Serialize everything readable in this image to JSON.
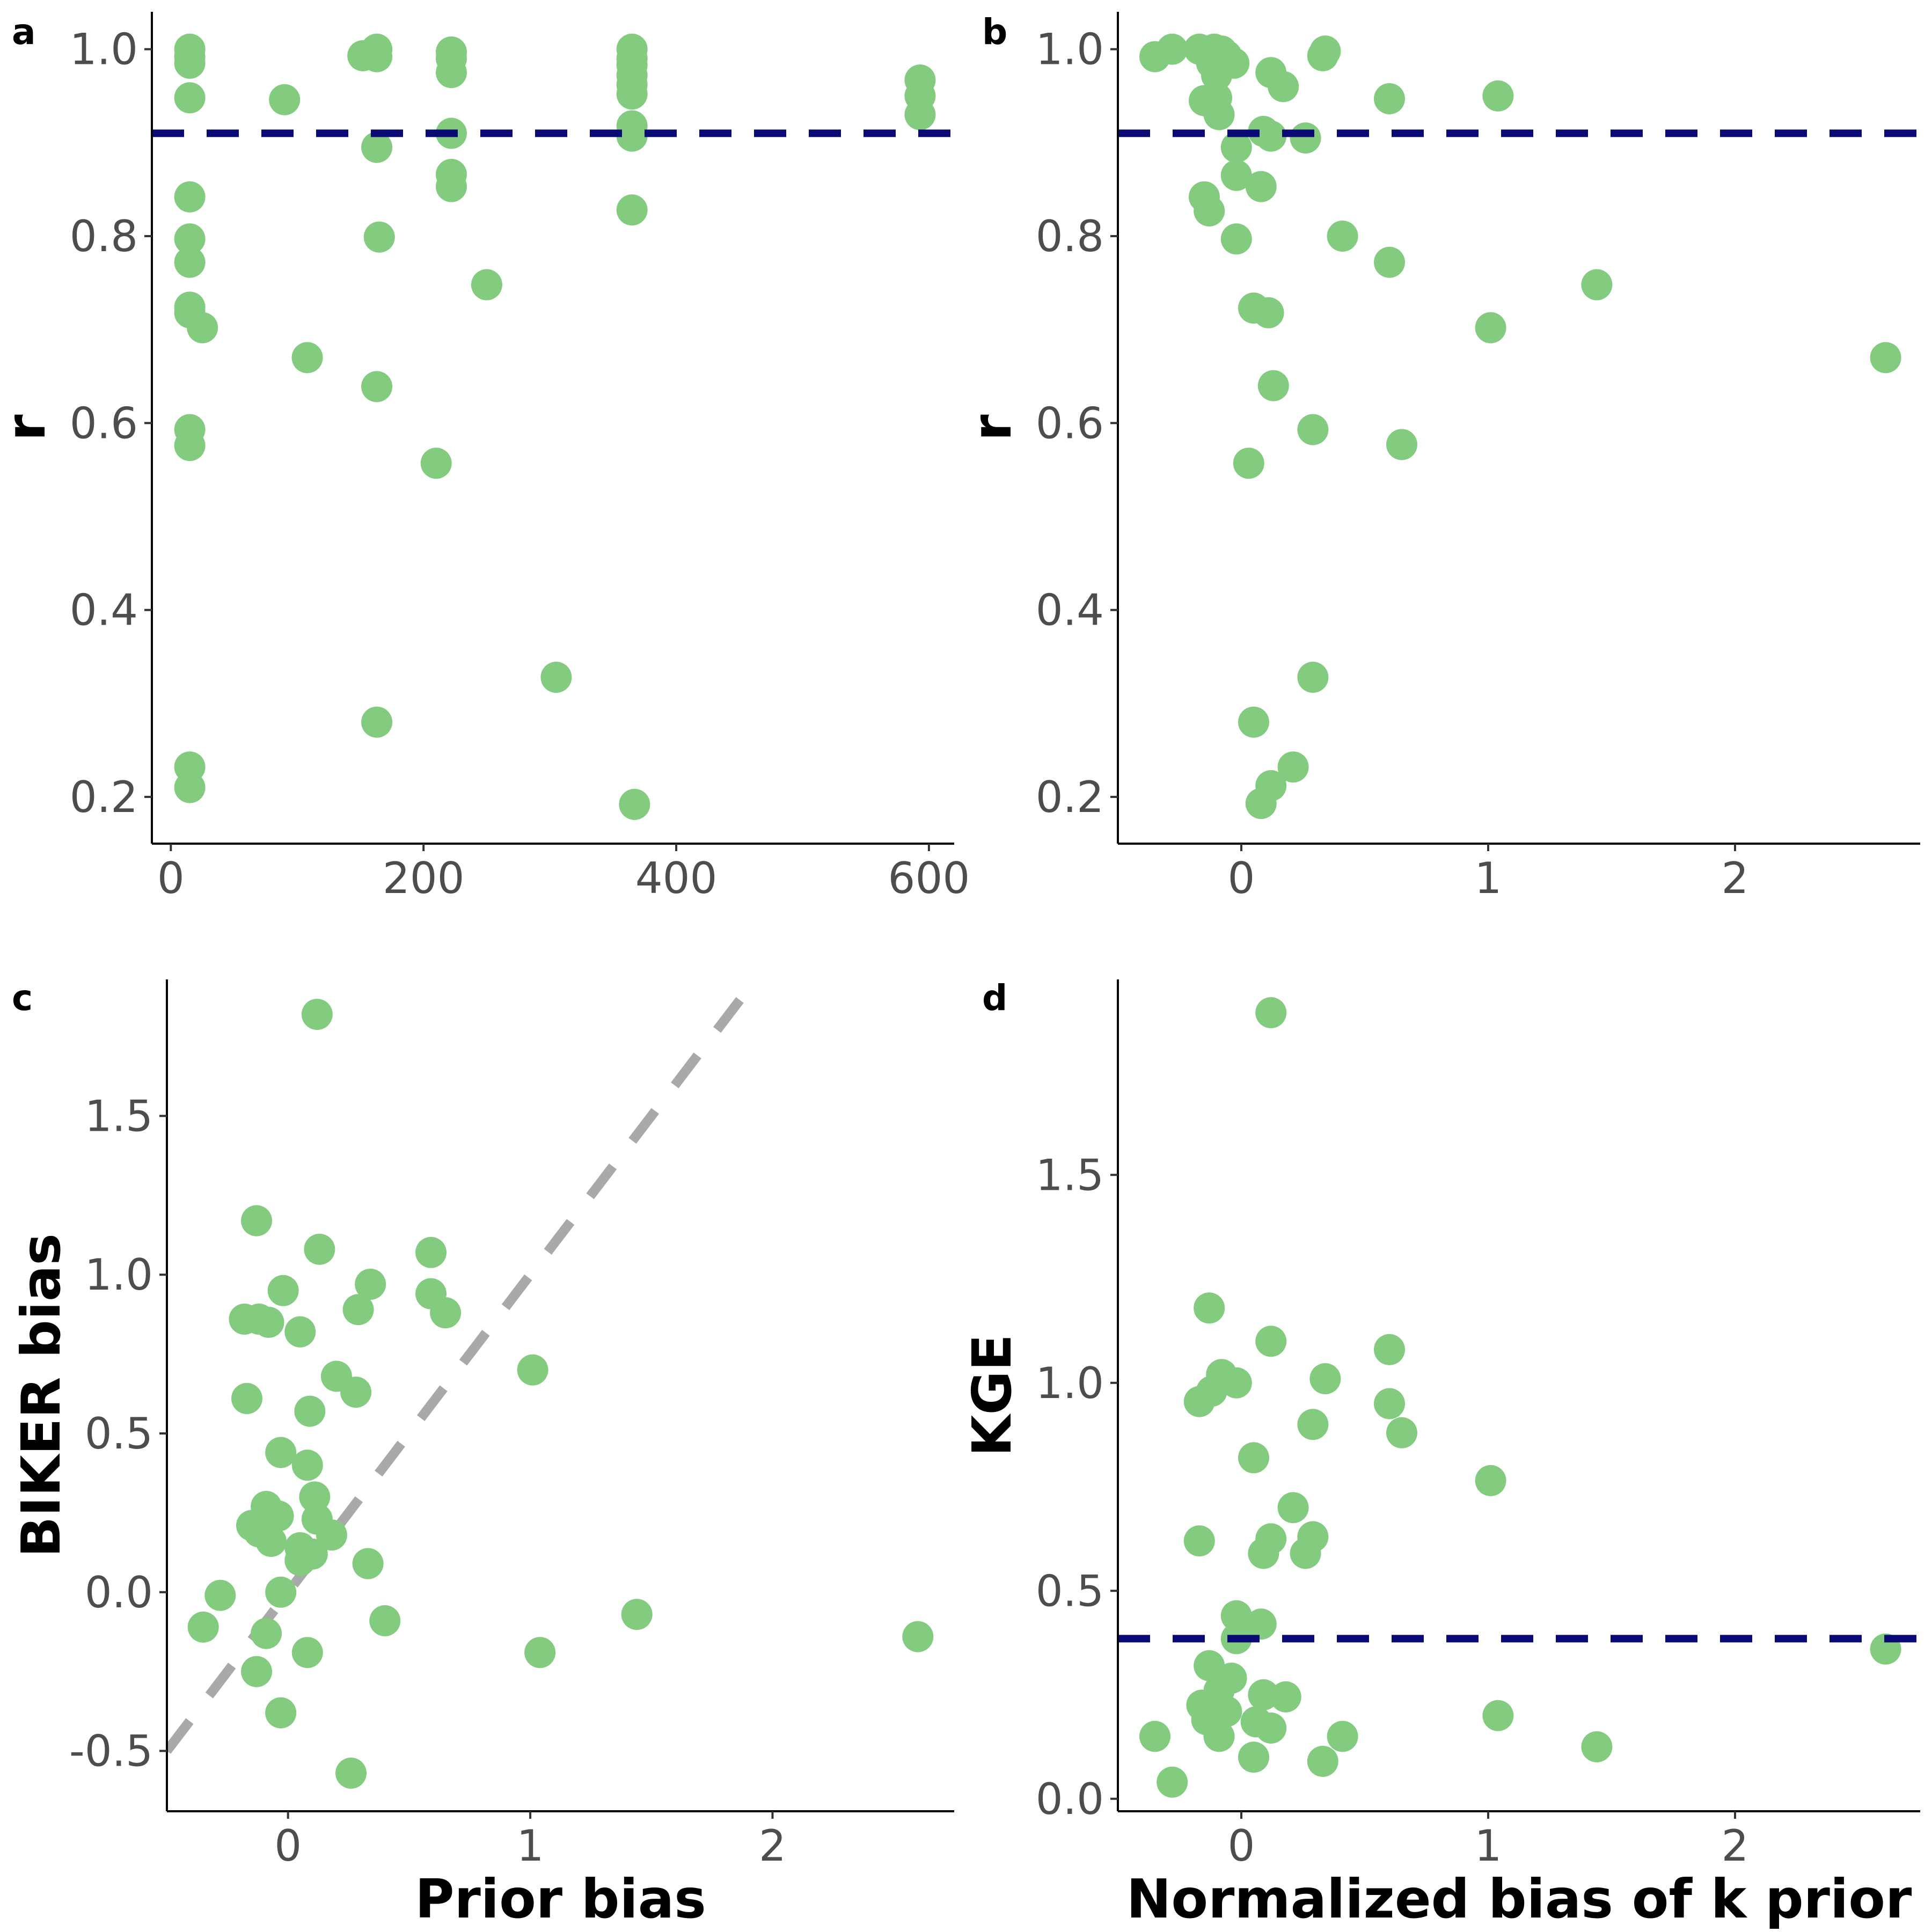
{
  "colors": {
    "point": "#82CB7F",
    "hline": "#0A0A74",
    "diagonal": "#A9A9A9"
  },
  "chart_data": [
    {
      "tag": "a",
      "type": "scatter",
      "xlabel": "",
      "ylabel": "r",
      "xlim": [
        -15,
        620
      ],
      "ylim": [
        0.15,
        1.04
      ],
      "xticks": [
        0,
        200,
        400,
        600
      ],
      "xtick_labels": [
        "0",
        "200",
        "400",
        "600"
      ],
      "yticks": [
        0.2,
        0.4,
        0.6,
        0.8,
        1.0
      ],
      "ytick_labels": [
        "0.2",
        "0.4",
        "0.6",
        "0.8",
        "1.0"
      ],
      "hline": 0.91,
      "points": [
        [
          15,
          1.0
        ],
        [
          15,
          0.992
        ],
        [
          15,
          0.985
        ],
        [
          15,
          0.948
        ],
        [
          15,
          0.842
        ],
        [
          15,
          0.797
        ],
        [
          15,
          0.772
        ],
        [
          15,
          0.724
        ],
        [
          15,
          0.718
        ],
        [
          25,
          0.702
        ],
        [
          15,
          0.593
        ],
        [
          15,
          0.576
        ],
        [
          15,
          0.232
        ],
        [
          15,
          0.21
        ],
        [
          90,
          0.946
        ],
        [
          108,
          0.67
        ],
        [
          152,
          0.993
        ],
        [
          163,
          1.0
        ],
        [
          163,
          0.992
        ],
        [
          163,
          0.895
        ],
        [
          165,
          0.799
        ],
        [
          163,
          0.639
        ],
        [
          163,
          0.28
        ],
        [
          210,
          0.557
        ],
        [
          222,
          0.997
        ],
        [
          222,
          0.99
        ],
        [
          222,
          0.975
        ],
        [
          222,
          0.91
        ],
        [
          222,
          0.866
        ],
        [
          222,
          0.853
        ],
        [
          250,
          0.748
        ],
        [
          305,
          0.328
        ],
        [
          365,
          1.0
        ],
        [
          365,
          0.99
        ],
        [
          365,
          0.983
        ],
        [
          365,
          0.972
        ],
        [
          365,
          0.962
        ],
        [
          365,
          0.952
        ],
        [
          365,
          0.918
        ],
        [
          365,
          0.907
        ],
        [
          365,
          0.828
        ],
        [
          367,
          0.192
        ],
        [
          593,
          0.967
        ],
        [
          593,
          0.95
        ],
        [
          593,
          0.93
        ]
      ]
    },
    {
      "tag": "b",
      "type": "scatter",
      "xlabel": "",
      "ylabel": "r",
      "xlim": [
        -0.5,
        2.75
      ],
      "ylim": [
        0.15,
        1.04
      ],
      "xticks": [
        0,
        1,
        2
      ],
      "xtick_labels": [
        "0",
        "1",
        "2"
      ],
      "yticks": [
        0.2,
        0.4,
        0.6,
        0.8,
        1.0
      ],
      "ytick_labels": [
        "0.2",
        "0.4",
        "0.6",
        "0.8",
        "1.0"
      ],
      "hline": 0.91,
      "points": [
        [
          -0.35,
          0.992
        ],
        [
          -0.28,
          1.0
        ],
        [
          -0.17,
          1.0
        ],
        [
          -0.11,
          1.0
        ],
        [
          -0.08,
          0.998
        ],
        [
          -0.12,
          0.985
        ],
        [
          -0.06,
          0.993
        ],
        [
          -0.03,
          0.985
        ],
        [
          -0.1,
          0.972
        ],
        [
          -0.15,
          0.945
        ],
        [
          -0.12,
          0.942
        ],
        [
          -0.1,
          0.948
        ],
        [
          -0.09,
          0.93
        ],
        [
          0.12,
          0.975
        ],
        [
          0.17,
          0.96
        ],
        [
          0.34,
          0.998
        ],
        [
          0.33,
          0.993
        ],
        [
          0.6,
          0.947
        ],
        [
          1.04,
          0.95
        ],
        [
          0.09,
          0.912
        ],
        [
          0.12,
          0.907
        ],
        [
          0.26,
          0.905
        ],
        [
          -0.02,
          0.895
        ],
        [
          -0.02,
          0.865
        ],
        [
          0.08,
          0.853
        ],
        [
          -0.15,
          0.842
        ],
        [
          -0.13,
          0.827
        ],
        [
          -0.02,
          0.797
        ],
        [
          0.41,
          0.8
        ],
        [
          0.6,
          0.772
        ],
        [
          0.05,
          0.723
        ],
        [
          0.11,
          0.718
        ],
        [
          1.01,
          0.702
        ],
        [
          1.44,
          0.748
        ],
        [
          2.61,
          0.67
        ],
        [
          0.13,
          0.64
        ],
        [
          0.29,
          0.593
        ],
        [
          0.65,
          0.577
        ],
        [
          0.03,
          0.557
        ],
        [
          0.29,
          0.328
        ],
        [
          0.05,
          0.28
        ],
        [
          0.21,
          0.232
        ],
        [
          0.12,
          0.212
        ],
        [
          0.08,
          0.193
        ]
      ]
    },
    {
      "tag": "c",
      "type": "scatter",
      "xlabel": "Prior bias",
      "ylabel": "BIKER bias",
      "xlim": [
        -0.5,
        2.75
      ],
      "ylim": [
        -0.69,
        1.93
      ],
      "xticks": [
        0,
        1,
        2
      ],
      "xtick_labels": [
        "0",
        "1",
        "2"
      ],
      "yticks": [
        -0.5,
        0.0,
        0.5,
        1.0,
        1.5
      ],
      "ytick_labels": [
        "-0.5",
        "0.0",
        "0.5",
        "1.0",
        "1.5"
      ],
      "diagonal": true,
      "points": [
        [
          0.12,
          1.82
        ],
        [
          -0.13,
          1.17
        ],
        [
          0.13,
          1.08
        ],
        [
          0.59,
          1.07
        ],
        [
          0.34,
          0.97
        ],
        [
          -0.02,
          0.95
        ],
        [
          0.59,
          0.94
        ],
        [
          0.65,
          0.88
        ],
        [
          0.29,
          0.89
        ],
        [
          -0.18,
          0.86
        ],
        [
          -0.12,
          0.86
        ],
        [
          -0.08,
          0.85
        ],
        [
          0.05,
          0.82
        ],
        [
          1.01,
          0.7
        ],
        [
          0.2,
          0.68
        ],
        [
          0.28,
          0.63
        ],
        [
          -0.17,
          0.61
        ],
        [
          0.09,
          0.57
        ],
        [
          -0.03,
          0.44
        ],
        [
          0.08,
          0.4
        ],
        [
          0.11,
          0.3
        ],
        [
          -0.09,
          0.27
        ],
        [
          -0.04,
          0.24
        ],
        [
          0.12,
          0.23
        ],
        [
          -0.15,
          0.21
        ],
        [
          -0.12,
          0.19
        ],
        [
          0.18,
          0.18
        ],
        [
          -0.07,
          0.16
        ],
        [
          0.05,
          0.14
        ],
        [
          0.1,
          0.12
        ],
        [
          0.33,
          0.09
        ],
        [
          0.05,
          0.1
        ],
        [
          -0.03,
          0.0
        ],
        [
          -0.28,
          -0.01
        ],
        [
          -0.35,
          -0.11
        ],
        [
          0.4,
          -0.09
        ],
        [
          1.44,
          -0.07
        ],
        [
          -0.09,
          -0.13
        ],
        [
          2.6,
          -0.14
        ],
        [
          0.08,
          -0.19
        ],
        [
          1.04,
          -0.19
        ],
        [
          -0.13,
          -0.25
        ],
        [
          -0.03,
          -0.38
        ],
        [
          0.26,
          -0.57
        ]
      ]
    },
    {
      "tag": "d",
      "type": "scatter",
      "xlabel": "Normalized bias of k prior",
      "ylabel": "KGE",
      "xlim": [
        -0.5,
        2.75
      ],
      "ylim": [
        -0.03,
        1.97
      ],
      "xticks": [
        0,
        1,
        2
      ],
      "xtick_labels": [
        "0",
        "1",
        "2"
      ],
      "yticks": [
        0.0,
        0.5,
        1.0,
        1.5
      ],
      "ytick_labels": [
        "0.0",
        "0.5",
        "1.0",
        "1.5"
      ],
      "hline": 0.385,
      "points": [
        [
          0.12,
          1.89
        ],
        [
          -0.13,
          1.18
        ],
        [
          0.12,
          1.1
        ],
        [
          0.6,
          1.08
        ],
        [
          -0.08,
          1.02
        ],
        [
          0.34,
          1.01
        ],
        [
          -0.02,
          1.0
        ],
        [
          -0.12,
          0.98
        ],
        [
          -0.17,
          0.955
        ],
        [
          0.6,
          0.95
        ],
        [
          0.29,
          0.9
        ],
        [
          0.65,
          0.88
        ],
        [
          0.05,
          0.82
        ],
        [
          1.01,
          0.765
        ],
        [
          0.21,
          0.7
        ],
        [
          0.29,
          0.63
        ],
        [
          0.12,
          0.625
        ],
        [
          -0.17,
          0.62
        ],
        [
          0.09,
          0.59
        ],
        [
          0.26,
          0.59
        ],
        [
          -0.02,
          0.44
        ],
        [
          0.08,
          0.42
        ],
        [
          -0.02,
          0.385
        ],
        [
          2.61,
          0.36
        ],
        [
          -0.13,
          0.32
        ],
        [
          -0.04,
          0.29
        ],
        [
          -0.09,
          0.26
        ],
        [
          0.09,
          0.25
        ],
        [
          0.18,
          0.245
        ],
        [
          -0.16,
          0.225
        ],
        [
          -0.12,
          0.21
        ],
        [
          -0.06,
          0.21
        ],
        [
          -0.14,
          0.19
        ],
        [
          1.04,
          0.2
        ],
        [
          0.06,
          0.185
        ],
        [
          0.12,
          0.17
        ],
        [
          -0.35,
          0.15
        ],
        [
          -0.09,
          0.15
        ],
        [
          0.41,
          0.15
        ],
        [
          1.44,
          0.125
        ],
        [
          0.05,
          0.1
        ],
        [
          0.33,
          0.09
        ],
        [
          -0.28,
          0.04
        ]
      ]
    }
  ]
}
